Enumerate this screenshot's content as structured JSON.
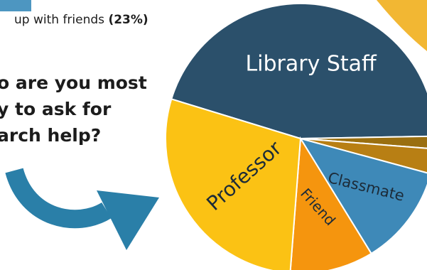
{
  "previous_item": {
    "text": "up with friends ",
    "value": "(23%)"
  },
  "question": {
    "lines": [
      "o are you most",
      "y to ask for",
      "arch help?"
    ]
  },
  "colors": {
    "library_staff": "#2b506b",
    "professor": "#fbc214",
    "friend": "#f5950e",
    "classmate": "#3e89b8",
    "other_1": "#9a6f10",
    "other_2": "#b87f14",
    "arrow": "#2a7fa8",
    "corner_accent": "#f2b733",
    "bar_chip": "#4d96c1"
  },
  "chart_data": {
    "type": "pie",
    "title": "",
    "slices": [
      {
        "label": "Library Staff",
        "value": 45
      },
      {
        "label": "",
        "value": 1.5
      },
      {
        "label": "",
        "value": 3
      },
      {
        "label": "Classmate",
        "value": 12
      },
      {
        "label": "Friend",
        "value": 10
      },
      {
        "label": "Professor",
        "value": 28.5
      }
    ]
  }
}
